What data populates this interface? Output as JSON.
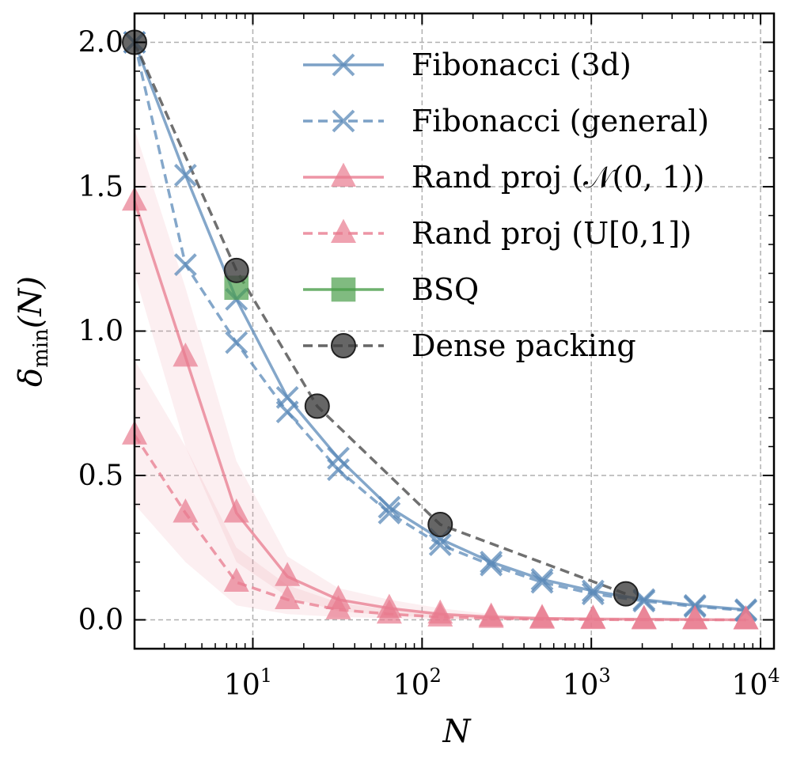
{
  "chart_data": {
    "type": "line",
    "xscale": "log",
    "xlim": [
      2,
      12000
    ],
    "ylim": [
      -0.1,
      2.1
    ],
    "xlabel": "N",
    "ylabel": "δmin(N)",
    "ylabel_parts": {
      "main": "δ",
      "sub": "min",
      "arg": "(N)"
    },
    "xticks": [
      {
        "value": 10,
        "base": "10",
        "exp": "1"
      },
      {
        "value": 100,
        "base": "10",
        "exp": "2"
      },
      {
        "value": 1000,
        "base": "10",
        "exp": "3"
      },
      {
        "value": 10000,
        "base": "10",
        "exp": "4"
      }
    ],
    "yticks": [
      "0.0",
      "0.5",
      "1.0",
      "1.5",
      "2.0"
    ],
    "grid": true,
    "legend_position": "top-right",
    "series": [
      {
        "name": "Fibonacci (3d)",
        "color": "#5b8ab8",
        "dash": "solid",
        "marker": "x",
        "x": [
          2,
          4,
          8,
          16,
          32,
          64,
          128,
          256,
          512,
          1024,
          2048,
          4096,
          8192
        ],
        "y": [
          2.0,
          1.54,
          1.11,
          0.77,
          0.56,
          0.39,
          0.28,
          0.2,
          0.14,
          0.1,
          0.07,
          0.05,
          0.035
        ]
      },
      {
        "name": "Fibonacci (general)",
        "color": "#5b8ab8",
        "dash": "dashed",
        "marker": "x",
        "x": [
          2,
          4,
          8,
          16,
          32,
          64,
          128,
          256,
          512,
          1024,
          2048,
          4096,
          8192
        ],
        "y": [
          2.0,
          1.23,
          0.96,
          0.72,
          0.52,
          0.37,
          0.26,
          0.19,
          0.13,
          0.09,
          0.065,
          0.046,
          0.032
        ]
      },
      {
        "name": "Rand proj (𝒩(0, 1))",
        "color": "#e87b8e",
        "dash": "solid",
        "marker": "triangle",
        "x": [
          2,
          4,
          8,
          16,
          32,
          64,
          128,
          256,
          512,
          1024,
          2048,
          4096,
          8192
        ],
        "y": [
          1.45,
          0.91,
          0.37,
          0.15,
          0.07,
          0.04,
          0.02,
          0.01,
          0.005,
          0.003,
          0.002,
          0.001,
          0.0
        ],
        "band_lower": [
          1.2,
          0.6,
          0.2,
          0.08,
          0.03,
          0.015,
          0.007,
          0.003,
          0.001,
          0.0,
          0.0,
          0.0,
          0.0
        ],
        "band_upper": [
          1.7,
          1.15,
          0.55,
          0.22,
          0.11,
          0.07,
          0.04,
          0.02,
          0.01,
          0.006,
          0.004,
          0.002,
          0.001
        ]
      },
      {
        "name": "Rand proj (U[0,1])",
        "color": "#e87b8e",
        "dash": "dashed",
        "marker": "triangle",
        "x": [
          2,
          4,
          8,
          16,
          32,
          64,
          128,
          256,
          512,
          1024,
          2048,
          4096,
          8192
        ],
        "y": [
          0.64,
          0.37,
          0.13,
          0.07,
          0.035,
          0.02,
          0.01,
          0.005,
          0.002,
          0.001,
          0.0,
          0.0,
          0.0
        ],
        "band_lower": [
          0.4,
          0.2,
          0.05,
          0.02,
          0.01,
          0.005,
          0.002,
          0.0,
          0.0,
          0.0,
          0.0,
          0.0,
          0.0
        ],
        "band_upper": [
          0.9,
          0.6,
          0.25,
          0.12,
          0.06,
          0.035,
          0.02,
          0.01,
          0.005,
          0.002,
          0.001,
          0.0,
          0.0
        ]
      },
      {
        "name": "BSQ",
        "color": "#4a9e4a",
        "dash": "solid",
        "marker": "square",
        "x": [
          8
        ],
        "y": [
          1.15
        ]
      },
      {
        "name": "Dense packing",
        "color": "#404040",
        "dash": "dashed",
        "marker": "circle",
        "x": [
          2,
          8,
          24,
          128,
          1600
        ],
        "y": [
          2.0,
          1.21,
          0.74,
          0.33,
          0.09
        ]
      }
    ]
  }
}
